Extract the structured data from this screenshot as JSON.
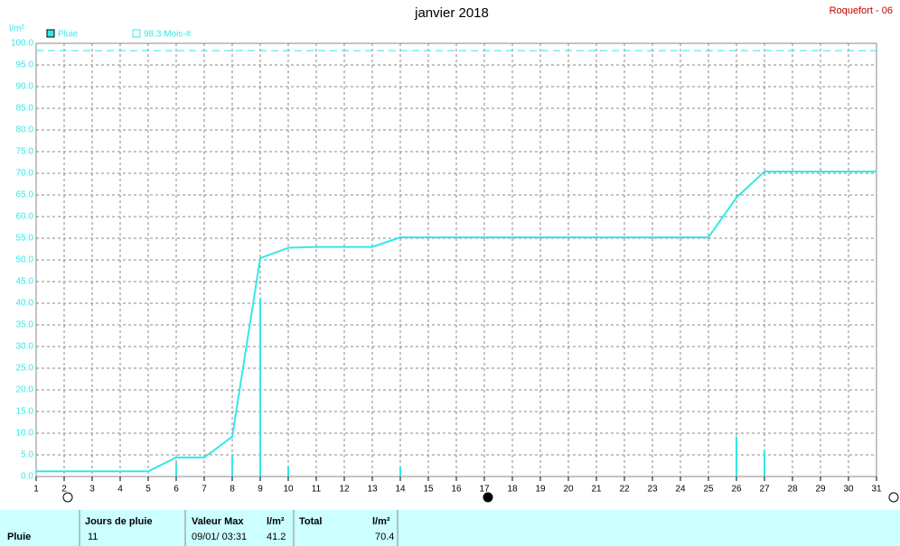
{
  "chart_data": {
    "type": "line",
    "title": "janvier 2018",
    "station": "Roquefort - 06",
    "y_label": "l/m²",
    "x": [
      1,
      2,
      3,
      4,
      5,
      6,
      7,
      8,
      9,
      10,
      11,
      12,
      13,
      14,
      15,
      16,
      17,
      18,
      19,
      20,
      21,
      22,
      23,
      24,
      25,
      26,
      27,
      28,
      29,
      30,
      31
    ],
    "series": [
      {
        "name": "Pluie",
        "color": "#33e8e8",
        "values": [
          1.2,
          1.2,
          1.2,
          1.2,
          1.2,
          4.4,
          4.4,
          9.2,
          50.4,
          52.8,
          53.0,
          53.0,
          53.0,
          55.2,
          55.2,
          55.2,
          55.2,
          55.2,
          55.2,
          55.2,
          55.2,
          55.2,
          55.2,
          55.2,
          55.2,
          64.4,
          70.4,
          70.4,
          70.4,
          70.4,
          70.4
        ]
      }
    ],
    "daily": {
      "x": [
        6,
        8,
        9,
        10,
        14,
        26,
        27
      ],
      "values": [
        3.2,
        4.8,
        41.2,
        2.4,
        2.2,
        9.2,
        6.0
      ]
    },
    "reference_line": {
      "value": 98.3,
      "label": "98.3 Mois-#"
    },
    "xlim": [
      1,
      31
    ],
    "xticks": [
      1,
      2,
      3,
      4,
      5,
      6,
      7,
      8,
      9,
      10,
      11,
      12,
      13,
      14,
      15,
      16,
      17,
      18,
      19,
      20,
      21,
      22,
      23,
      24,
      25,
      26,
      27,
      28,
      29,
      30,
      31
    ],
    "ylim": [
      0,
      100
    ],
    "yticks": [
      {
        "value": 0,
        "label": "0.0"
      },
      {
        "value": 5,
        "label": "5.0"
      },
      {
        "value": 10,
        "label": "10.0"
      },
      {
        "value": 15,
        "label": "15.0"
      },
      {
        "value": 20,
        "label": "20.0"
      },
      {
        "value": 25,
        "label": "25.0"
      },
      {
        "value": 30,
        "label": "30.0"
      },
      {
        "value": 35,
        "label": "35.0"
      },
      {
        "value": 40,
        "label": "40.0"
      },
      {
        "value": 45,
        "label": "45.0"
      },
      {
        "value": 50,
        "label": "50.0"
      },
      {
        "value": 55,
        "label": "55.0"
      },
      {
        "value": 60,
        "label": "60.0"
      },
      {
        "value": 65,
        "label": "65.0"
      },
      {
        "value": 70,
        "label": "70.0"
      },
      {
        "value": 75,
        "label": "75.0"
      },
      {
        "value": 80,
        "label": "80.0"
      },
      {
        "value": 85,
        "label": "85.0"
      },
      {
        "value": 90,
        "label": "90.0"
      },
      {
        "value": 95,
        "label": "95.0"
      },
      {
        "value": 100,
        "label": "100.0"
      }
    ],
    "grid": true
  },
  "table": {
    "row_label": "Pluie",
    "headers": [
      "Jours de pluie",
      "Valeur Max",
      "l/m²",
      "Total",
      "l/m²"
    ],
    "values": [
      "11",
      "09/01/ 03:31",
      "41.2",
      "70.4"
    ]
  }
}
